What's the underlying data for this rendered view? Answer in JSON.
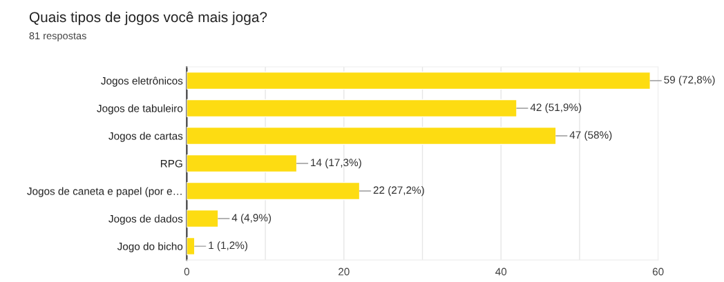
{
  "chart_data": {
    "type": "bar",
    "orientation": "horizontal",
    "title": "Quais tipos de jogos você mais joga?",
    "subtitle": "81 respostas",
    "categories": [
      "Jogos eletrônicos",
      "Jogos de tabuleiro",
      "Jogos de cartas",
      "RPG",
      "Jogos de caneta e papel (por e…",
      "Jogos de dados",
      "Jogo do bicho"
    ],
    "values": [
      59,
      42,
      47,
      14,
      22,
      4,
      1
    ],
    "value_labels": [
      "59 (72,8%)",
      "42 (51,9%)",
      "47 (58%)",
      "14 (17,3%)",
      "22 (27,2%)",
      "4 (4,9%)",
      "1 (1,2%)"
    ],
    "color": "#fddc12",
    "xlim": [
      0,
      60
    ],
    "xticks": [
      0,
      {
        "value": 10,
        "label": null
      },
      20,
      {
        "value": 30,
        "label": null
      },
      40,
      {
        "value": 50,
        "label": null
      },
      60
    ],
    "grid": "x",
    "legend": false
  }
}
